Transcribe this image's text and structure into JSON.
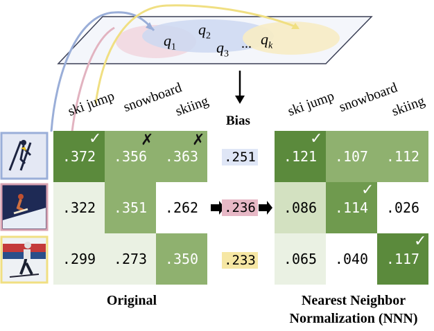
{
  "colors": {
    "dark_green": "#5b8a3c",
    "mid_green": "#8fb16f",
    "light_green": "#d3e1c1",
    "pale_green": "#eaf1e3",
    "white": "#ffffff",
    "blue": "#9aaed8",
    "pink": "#d9a3b2",
    "yellow": "#f2e08a"
  },
  "plane": {
    "q1": "q",
    "q1_sub": "1",
    "q2": "q",
    "q2_sub": "2",
    "q3": "q",
    "q3_sub": "3",
    "dots": "...",
    "qk": "q",
    "qk_sub": "k"
  },
  "columns": [
    "ski jump",
    "snowboard",
    "skiing"
  ],
  "original": {
    "caption": "Original",
    "rows": [
      [
        ".372",
        ".356",
        ".363"
      ],
      [
        ".322",
        ".351",
        ".262"
      ],
      [
        ".299",
        ".273",
        ".350"
      ]
    ],
    "marks": [
      "✓",
      "✗",
      "✗"
    ]
  },
  "bias": {
    "title": "Bias",
    "values": [
      ".251",
      ".236",
      ".233"
    ]
  },
  "nnn": {
    "caption_line1": "Nearest Neighbor",
    "caption_line2": "Normalization (NNN)",
    "rows": [
      [
        ".121",
        ".107",
        ".112"
      ],
      [
        ".086",
        ".114",
        ".026"
      ],
      [
        ".065",
        ".040",
        ".117"
      ]
    ],
    "marks": [
      "✓",
      "✓",
      "✓"
    ]
  },
  "thumbnails": [
    "ski-jump-photo",
    "snowboard-photo",
    "skiing-photo"
  ]
}
